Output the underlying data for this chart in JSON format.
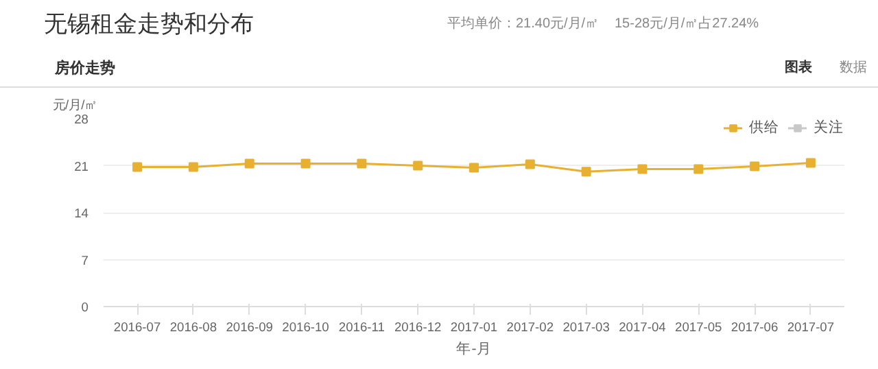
{
  "chart_data": {
    "type": "line",
    "title": "无锡租金走势和分布",
    "subtitle": "房价走势",
    "ylabel": "元/月/㎡",
    "xlabel": "年-月",
    "annotations": [
      "平均单价：21.40元/月/㎡",
      "15-28元/月/㎡占27.24%",
      "图表",
      "数据"
    ],
    "categories": [
      "2016-07",
      "2016-08",
      "2016-09",
      "2016-10",
      "2016-11",
      "2016-12",
      "2017-01",
      "2017-02",
      "2017-03",
      "2017-04",
      "2017-05",
      "2017-06",
      "2017-07"
    ],
    "series": [
      {
        "name": "供给",
        "color": "#e8b030",
        "values": [
          20.8,
          20.8,
          21.3,
          21.3,
          21.3,
          21.0,
          20.7,
          21.2,
          20.1,
          20.5,
          20.5,
          20.9,
          21.4
        ]
      },
      {
        "name": "关注",
        "color": "#c8c8c8",
        "values": [
          null,
          null,
          null,
          null,
          null,
          null,
          null,
          null,
          null,
          null,
          null,
          null,
          null
        ]
      }
    ],
    "ylim": [
      0,
      28
    ],
    "yticks": [
      0,
      7,
      14,
      21,
      28
    ],
    "grid": "y",
    "legend": "top right",
    "marker": "square",
    "line_style": "solid"
  }
}
